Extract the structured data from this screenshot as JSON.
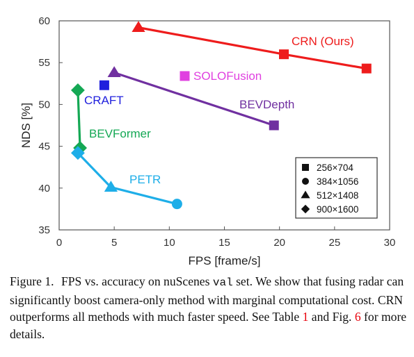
{
  "chart_data": {
    "type": "scatter",
    "title": "",
    "xlabel": "FPS [frame/s]",
    "ylabel": "NDS [%]",
    "xlim": [
      0,
      30
    ],
    "ylim": [
      35,
      60
    ],
    "xticks": [
      "0",
      "5",
      "10",
      "15",
      "20",
      "25",
      "30"
    ],
    "yticks": [
      "35",
      "40",
      "45",
      "50",
      "55",
      "60"
    ],
    "grid": false,
    "legend_position": "bottom-right",
    "legend": [
      {
        "marker": "square",
        "label": "256×704"
      },
      {
        "marker": "circle",
        "label": "384×1056"
      },
      {
        "marker": "triangle",
        "label": "512×1408"
      },
      {
        "marker": "diamond",
        "label": "900×1600"
      }
    ],
    "series": [
      {
        "name": "CRN (Ours)",
        "color": "#ee1c1c",
        "connected": true,
        "points": [
          {
            "x": 7.2,
            "y": 59.2,
            "marker": "triangle"
          },
          {
            "x": 20.4,
            "y": 56.0,
            "marker": "square"
          },
          {
            "x": 27.9,
            "y": 54.3,
            "marker": "square"
          }
        ]
      },
      {
        "name": "BEVDepth",
        "color": "#7030a0",
        "connected": true,
        "points": [
          {
            "x": 5.0,
            "y": 53.8,
            "marker": "triangle"
          },
          {
            "x": 19.5,
            "y": 47.5,
            "marker": "square"
          }
        ]
      },
      {
        "name": "SOLOFusion",
        "color": "#e040e0",
        "connected": false,
        "points": [
          {
            "x": 11.4,
            "y": 53.4,
            "marker": "square"
          }
        ]
      },
      {
        "name": "CRAFT",
        "color": "#1f1fdd",
        "connected": false,
        "points": [
          {
            "x": 4.1,
            "y": 52.3,
            "marker": "square"
          }
        ]
      },
      {
        "name": "BEVFormer",
        "color": "#14a854",
        "connected": true,
        "points": [
          {
            "x": 1.7,
            "y": 51.7,
            "marker": "diamond"
          },
          {
            "x": 1.9,
            "y": 44.8,
            "marker": "diamond"
          }
        ]
      },
      {
        "name": "PETR",
        "color": "#1eaee8",
        "connected": true,
        "points": [
          {
            "x": 1.7,
            "y": 44.2,
            "marker": "diamond"
          },
          {
            "x": 4.7,
            "y": 40.1,
            "marker": "triangle"
          },
          {
            "x": 10.7,
            "y": 38.1,
            "marker": "circle"
          }
        ]
      }
    ]
  },
  "caption": {
    "label": "Figure 1.",
    "text_before_val": "FPS vs. accuracy on nuScenes ",
    "val_word": "val",
    "text_after_val": " set. We show that fusing radar can significantly boost camera-only method with marginal computational cost. CRN outperforms all methods with much faster speed. See Table ",
    "table_ref": "1",
    "text_between_refs": " and Fig. ",
    "fig_ref": "6",
    "text_end": " for more details."
  }
}
